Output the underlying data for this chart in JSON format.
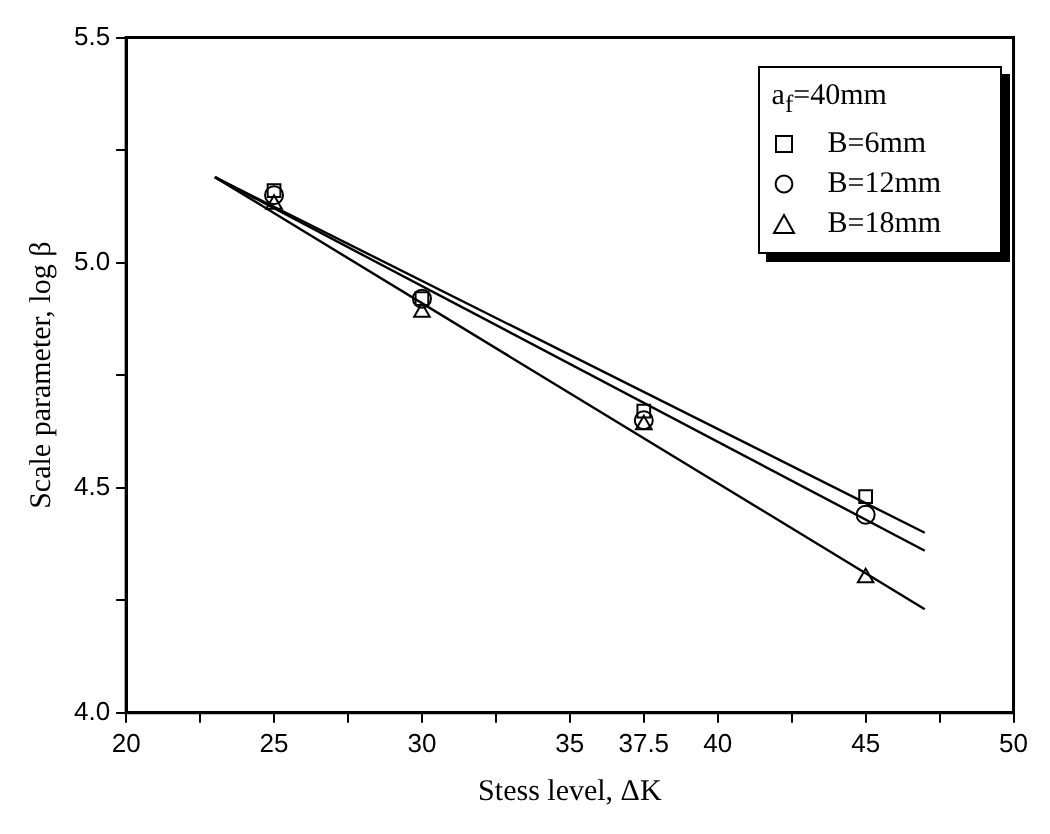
{
  "chart_data": {
    "type": "scatter",
    "xlabel": "Stess level, ΔK",
    "ylabel": "Scale parameter, log β",
    "legend_title": "a$_{f}$=40mm",
    "legend": "top right",
    "grid": false,
    "xlim": [
      20,
      50
    ],
    "xticks": [
      20,
      {
        "value": 22.5,
        "label": null
      },
      25,
      {
        "value": 27.5,
        "label": null
      },
      30,
      {
        "value": 32.5,
        "label": null
      },
      35,
      37.5,
      40,
      {
        "value": 42.5,
        "label": null
      },
      45,
      {
        "value": 47.5,
        "label": null
      },
      50
    ],
    "ylim": [
      4.0,
      5.5
    ],
    "yticks": [
      {
        "value": 4,
        "label": "4.0"
      },
      {
        "value": 4.25,
        "label": null
      },
      4.5,
      {
        "value": 4.75,
        "label": null
      },
      {
        "value": 5,
        "label": "5.0"
      },
      {
        "value": 5.25,
        "label": null
      },
      5.5
    ],
    "series": [
      {
        "name": "B=6mm",
        "color": "#000000",
        "marker": "square",
        "x": [
          25,
          30,
          37.5,
          45
        ],
        "values": [
          5.16,
          4.92,
          4.67,
          4.48
        ]
      },
      {
        "name": "B=12mm",
        "color": "#000000",
        "marker": "circle",
        "x": [
          25,
          30,
          37.5,
          45
        ],
        "values": [
          5.15,
          4.92,
          4.65,
          4.44
        ]
      },
      {
        "name": "B=18mm",
        "color": "#000000",
        "marker": "triangle",
        "x": [
          25,
          30,
          37.5,
          45
        ],
        "values": [
          5.13,
          4.89,
          4.64,
          4.3
        ]
      },
      {
        "type": "line",
        "color": "#000000",
        "marker": "none",
        "x": [
          23,
          47
        ],
        "values": [
          5.19,
          4.4
        ]
      },
      {
        "type": "line",
        "color": "#000000",
        "marker": "none",
        "x": [
          23,
          47
        ],
        "values": [
          5.19,
          4.36
        ]
      },
      {
        "type": "line",
        "color": "#000000",
        "marker": "none",
        "x": [
          23,
          47
        ],
        "values": [
          5.19,
          4.23
        ]
      }
    ]
  }
}
